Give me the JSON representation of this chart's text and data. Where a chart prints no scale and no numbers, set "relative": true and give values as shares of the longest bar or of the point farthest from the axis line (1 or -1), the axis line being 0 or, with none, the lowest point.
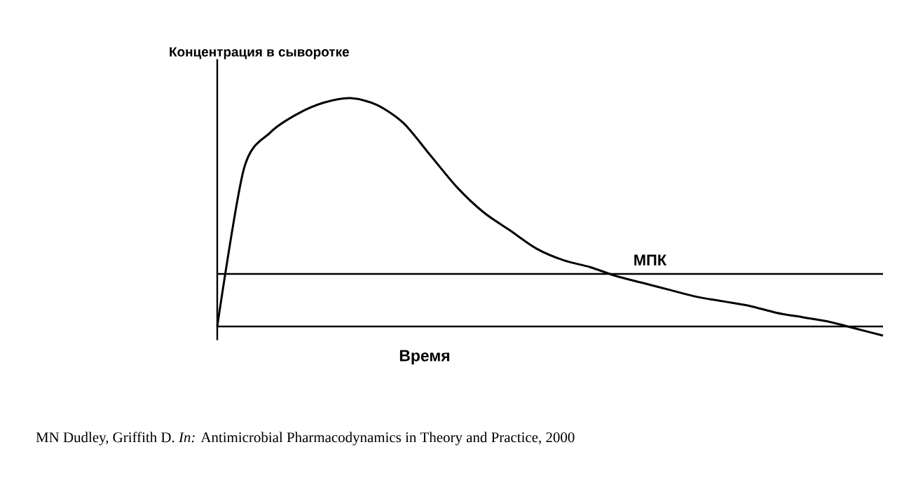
{
  "chart_data": {
    "type": "line",
    "relative": true,
    "ylabel": "Концентрация в сыворотке",
    "xlabel": "Время",
    "categories": [
      null,
      null,
      null,
      null,
      null,
      null,
      null,
      null,
      null,
      null,
      null,
      null,
      null,
      null,
      null,
      null,
      null,
      null,
      null,
      null,
      null,
      null,
      null,
      null,
      null,
      null
    ],
    "series": [
      {
        "color": "#000000",
        "values": [
          0,
          0.69,
          0.85,
          0.93,
          0.98,
          1.0,
          0.97,
          0.89,
          0.75,
          0.61,
          0.5,
          0.42,
          0.34,
          0.29,
          0.26,
          0.22,
          0.19,
          0.16,
          0.13,
          0.11,
          0.09,
          0.06,
          0.04,
          0.02,
          -0.01,
          -0.04
        ]
      }
    ],
    "ref_lines": [
      {
        "axis": "y",
        "value": 0.23,
        "label": "МПК",
        "color": "#000000"
      }
    ],
    "annotations": [
      "MN Dudley, Griffith D. *In:* Antimicrobial Pharmacodynamics in Theory and Practice, 2000"
    ]
  }
}
